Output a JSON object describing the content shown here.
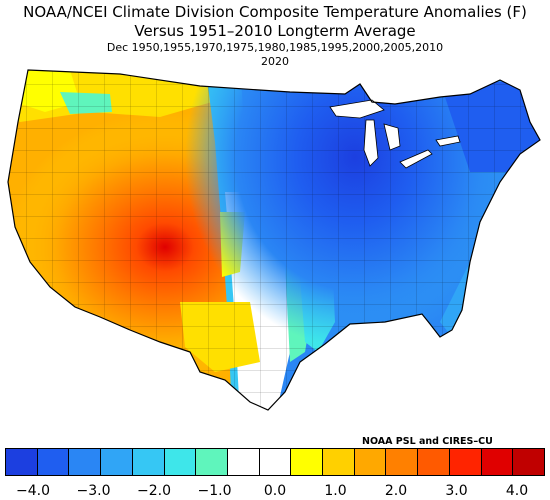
{
  "map": {
    "title_line1": "NOAA/NCEI Climate Division Composite Temperature Anomalies (F)",
    "title_line2": "Versus 1951–2010 Longterm Average",
    "title_line3": "Dec   1950,1955,1970,1975,1980,1985,1995,2000,2005,2010",
    "title_line4": "2020",
    "credit": "NOAA PSL and CIRES–CU",
    "region": "Contiguous United States climate divisions",
    "anomaly_pattern": [
      {
        "region": "Desert Southwest / Four Corners",
        "level": "warmest",
        "approx_anomaly_f": 3.5
      },
      {
        "region": "Great Basin and Rockies",
        "level": "warm",
        "approx_anomaly_f": 2.5
      },
      {
        "region": "California and Pacific coast",
        "level": "warm",
        "approx_anomaly_f": 1.8
      },
      {
        "region": "Northern Rockies and Northwest",
        "level": "mild",
        "approx_anomaly_f": 1.0
      },
      {
        "region": "Southern High Plains / New Mexico",
        "level": "mild",
        "approx_anomaly_f": 1.0
      },
      {
        "region": "Central and Southern Plains",
        "level": "near-normal",
        "approx_anomaly_f": 0.0
      },
      {
        "region": "Northern Plains",
        "level": "cool",
        "approx_anomaly_f": -1.5
      },
      {
        "region": "Upper Midwest",
        "level": "coldest",
        "approx_anomaly_f": -3.8
      },
      {
        "region": "Ohio Valley and Southeast",
        "level": "cold",
        "approx_anomaly_f": -3.0
      },
      {
        "region": "Northeast",
        "level": "cold",
        "approx_anomaly_f": -3.5
      }
    ]
  },
  "colorbar": {
    "colors": [
      "#1c3fe0",
      "#1f5ef0",
      "#2a86f4",
      "#30a5f6",
      "#36c7f4",
      "#3ee6ea",
      "#5ff5bc",
      "#ffffff",
      "#ffffff",
      "#ffff00",
      "#ffd000",
      "#ffa800",
      "#ff8000",
      "#ff5a00",
      "#ff2400",
      "#e00000",
      "#c00000"
    ],
    "tick_labels": [
      "−4.0",
      "−3.0",
      "−2.0",
      "−1.0",
      "0.0",
      "1.0",
      "2.0",
      "3.0",
      "4.0"
    ],
    "range": [
      -4.0,
      4.0
    ],
    "units": "F"
  }
}
